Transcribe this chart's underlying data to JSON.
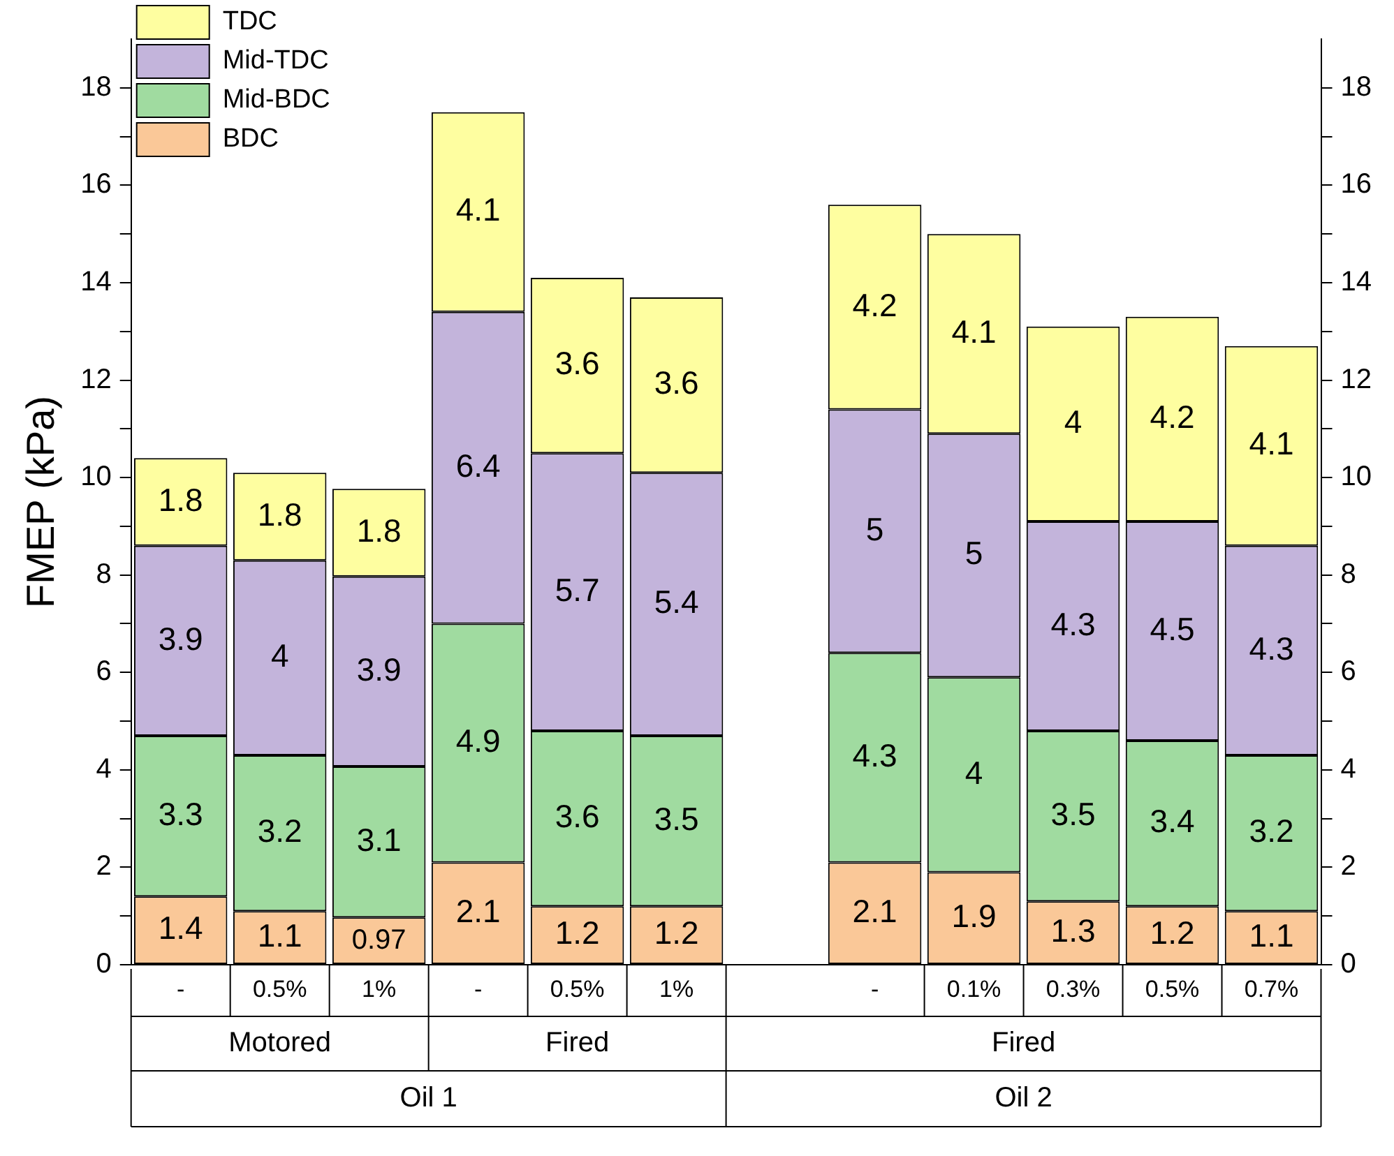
{
  "chart_data": {
    "type": "bar",
    "stacked": true,
    "ylabel": "FMEP (kPa)",
    "categories": [
      "-",
      "0.5%",
      "1%",
      "-",
      "0.5%",
      "1%",
      null,
      "-",
      "0.1%",
      "0.3%",
      "0.5%",
      "0.7%"
    ],
    "series": [
      {
        "name": "BDC",
        "color": "#fac898",
        "values": [
          1.4,
          1.1,
          0.97,
          2.1,
          1.2,
          1.2,
          null,
          2.1,
          1.9,
          1.3,
          1.2,
          1.1
        ]
      },
      {
        "name": "Mid-BDC",
        "color": "#a0dba0",
        "values": [
          3.3,
          3.2,
          3.1,
          4.9,
          3.6,
          3.5,
          null,
          4.3,
          4,
          3.5,
          3.4,
          3.2
        ]
      },
      {
        "name": "Mid-TDC",
        "color": "#c3b4db",
        "values": [
          3.9,
          4,
          3.9,
          6.4,
          5.7,
          5.4,
          null,
          5,
          5,
          4.3,
          4.5,
          4.3
        ]
      },
      {
        "name": "TDC",
        "color": "#fefea0",
        "values": [
          1.8,
          1.8,
          1.8,
          4.1,
          3.6,
          3.6,
          null,
          4.2,
          4.1,
          4,
          4.2,
          4.1
        ]
      }
    ],
    "ylim": [
      0,
      19
    ],
    "yticks": [
      0,
      {
        "value": 1,
        "label": null
      },
      2,
      {
        "value": 3,
        "label": null
      },
      4,
      {
        "value": 5,
        "label": null
      },
      6,
      {
        "value": 7,
        "label": null
      },
      8,
      {
        "value": 9,
        "label": null
      },
      10,
      {
        "value": 11,
        "label": null
      },
      12,
      {
        "value": 13,
        "label": null
      },
      14,
      {
        "value": 15,
        "label": null
      },
      16,
      {
        "value": 17,
        "label": null
      },
      18
    ],
    "y2lim": [
      0,
      19
    ],
    "y2ticks": [
      0,
      {
        "value": 1,
        "label": null
      },
      2,
      {
        "value": 3,
        "label": null
      },
      4,
      {
        "value": 5,
        "label": null
      },
      6,
      {
        "value": 7,
        "label": null
      },
      8,
      {
        "value": 9,
        "label": null
      },
      10,
      {
        "value": 11,
        "label": null
      },
      12,
      {
        "value": 13,
        "label": null
      },
      14,
      {
        "value": 15,
        "label": null
      },
      16,
      {
        "value": 17,
        "label": null
      },
      18
    ],
    "annotations": [
      "Motored",
      "Fired",
      "Fired",
      "Oil 1",
      "Oil 2"
    ],
    "data_labels": true,
    "legend": "top left",
    "grid": false
  }
}
